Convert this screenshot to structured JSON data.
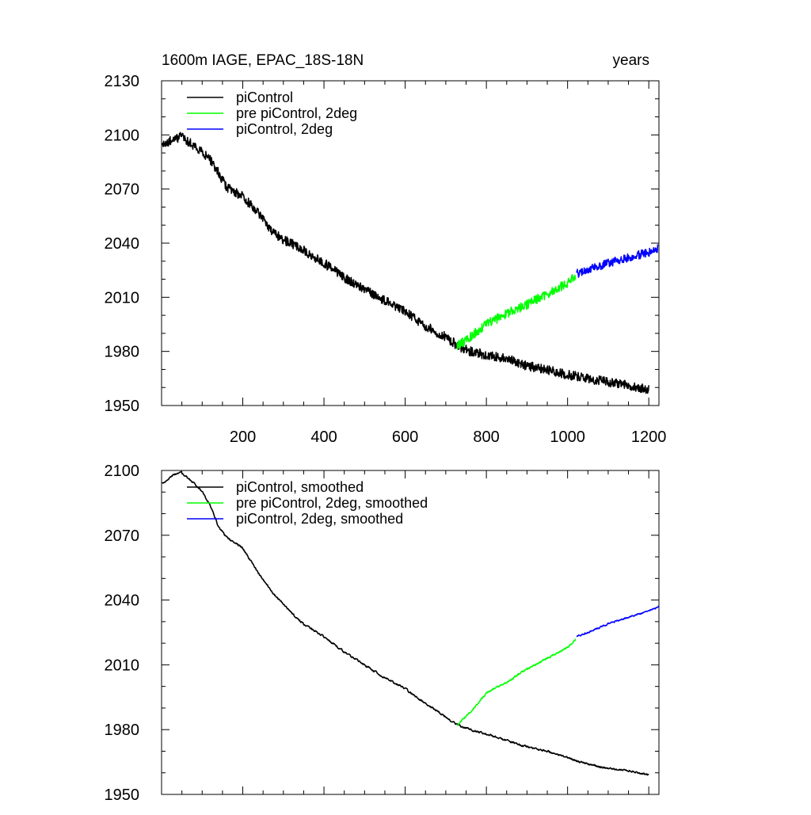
{
  "figure": {
    "title_left": "1600m IAGE, EPAC_18S-18N",
    "title_right": "years"
  },
  "chart_data": [
    {
      "type": "line",
      "panel": "top",
      "title": "1600m IAGE, EPAC_18S-18N",
      "xlabel": "",
      "ylabel": "",
      "xlim": [
        0,
        1225
      ],
      "ylim": [
        1950,
        2130
      ],
      "x_ticks": [
        200,
        400,
        600,
        800,
        1000,
        1200
      ],
      "y_ticks": [
        1950,
        1980,
        2010,
        2040,
        2070,
        2100,
        2130
      ],
      "legend_position": "top-left",
      "series": [
        {
          "name": "piControl",
          "color": "#000000",
          "noise": 2.6,
          "points": [
            [
              1,
              2094
            ],
            [
              30,
              2098
            ],
            [
              50,
              2099
            ],
            [
              80,
              2094
            ],
            [
              100,
              2091
            ],
            [
              120,
              2086
            ],
            [
              140,
              2079
            ],
            [
              160,
              2071
            ],
            [
              200,
              2066
            ],
            [
              240,
              2056
            ],
            [
              270,
              2047
            ],
            [
              300,
              2042
            ],
            [
              350,
              2036
            ],
            [
              400,
              2029
            ],
            [
              450,
              2021
            ],
            [
              500,
              2014
            ],
            [
              550,
              2008
            ],
            [
              600,
              2002
            ],
            [
              650,
              1994
            ],
            [
              700,
              1988
            ],
            [
              730,
              1983
            ],
            [
              760,
              1980
            ],
            [
              800,
              1978
            ],
            [
              850,
              1976
            ],
            [
              900,
              1972
            ],
            [
              950,
              1970
            ],
            [
              1000,
              1967
            ],
            [
              1050,
              1965
            ],
            [
              1100,
              1963
            ],
            [
              1150,
              1961
            ],
            [
              1200,
              1959
            ]
          ]
        },
        {
          "name": "pre piControl, 2deg",
          "color": "#00ff00",
          "noise": 2.6,
          "points": [
            [
              728,
              1983
            ],
            [
              760,
              1988
            ],
            [
              800,
              1995
            ],
            [
              850,
              2001
            ],
            [
              900,
              2006
            ],
            [
              950,
              2012
            ],
            [
              1000,
              2018
            ],
            [
              1020,
              2022
            ]
          ]
        },
        {
          "name": "piControl, 2deg",
          "color": "#0000ff",
          "noise": 2.4,
          "points": [
            [
              1022,
              2023
            ],
            [
              1050,
              2025
            ],
            [
              1100,
              2029
            ],
            [
              1150,
              2032
            ],
            [
              1200,
              2035
            ],
            [
              1222,
              2037
            ]
          ]
        }
      ]
    },
    {
      "type": "line",
      "panel": "bottom",
      "title": "",
      "xlabel": "",
      "ylabel": "",
      "xlim": [
        0,
        1225
      ],
      "ylim": [
        1950,
        2100
      ],
      "x_ticks": [
        200,
        400,
        600,
        800,
        1000,
        1200
      ],
      "y_ticks": [
        1950,
        1980,
        2010,
        2040,
        2070,
        2100
      ],
      "legend_position": "top-left",
      "series": [
        {
          "name": "piControl, smoothed",
          "color": "#000000",
          "noise": 0.8,
          "points": [
            [
              1,
              2094
            ],
            [
              30,
              2098
            ],
            [
              50,
              2099
            ],
            [
              80,
              2094
            ],
            [
              100,
              2090
            ],
            [
              120,
              2084
            ],
            [
              140,
              2074
            ],
            [
              160,
              2069
            ],
            [
              200,
              2064
            ],
            [
              240,
              2052
            ],
            [
              280,
              2042
            ],
            [
              320,
              2034
            ],
            [
              350,
              2029
            ],
            [
              400,
              2023
            ],
            [
              450,
              2016
            ],
            [
              500,
              2010
            ],
            [
              550,
              2004
            ],
            [
              600,
              1999
            ],
            [
              650,
              1992
            ],
            [
              700,
              1986
            ],
            [
              730,
              1982
            ],
            [
              760,
              1980
            ],
            [
              800,
              1978
            ],
            [
              850,
              1975
            ],
            [
              900,
              1972
            ],
            [
              950,
              1970
            ],
            [
              1000,
              1967
            ],
            [
              1050,
              1964
            ],
            [
              1100,
              1962
            ],
            [
              1150,
              1961
            ],
            [
              1200,
              1959
            ]
          ]
        },
        {
          "name": "pre piControl, 2deg, smoothed",
          "color": "#00ff00",
          "noise": 0.8,
          "points": [
            [
              728,
              1982
            ],
            [
              760,
              1988
            ],
            [
              800,
              1997
            ],
            [
              850,
              2002
            ],
            [
              900,
              2008
            ],
            [
              950,
              2013
            ],
            [
              1000,
              2018
            ],
            [
              1020,
              2022
            ]
          ]
        },
        {
          "name": "piControl, 2deg, smoothed",
          "color": "#0000ff",
          "noise": 0.7,
          "points": [
            [
              1022,
              2023
            ],
            [
              1050,
              2025
            ],
            [
              1100,
              2029
            ],
            [
              1150,
              2032
            ],
            [
              1200,
              2035
            ],
            [
              1225,
              2037
            ]
          ]
        }
      ]
    }
  ]
}
